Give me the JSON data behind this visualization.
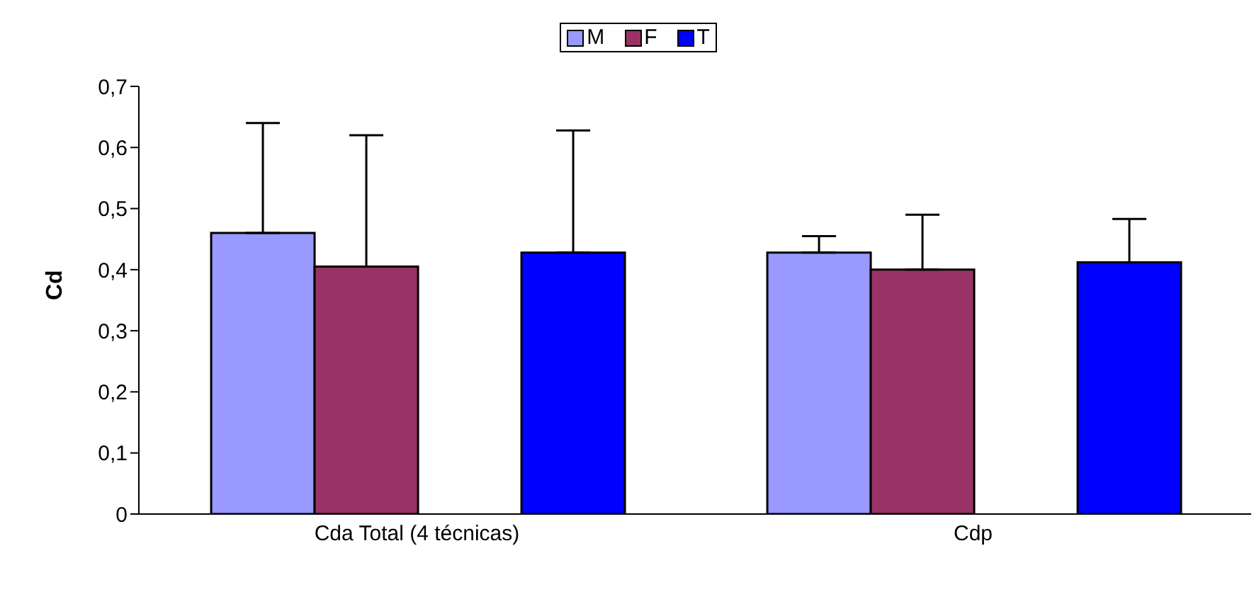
{
  "chart_data": {
    "type": "bar",
    "ylabel": "Cd",
    "categories": [
      "Cda Total (4 técnicas)",
      "Cdp"
    ],
    "series": [
      {
        "name": "M",
        "color": "#9999ff",
        "values": [
          0.46,
          0.428
        ],
        "errors": [
          [
            0.46,
            0.64
          ],
          [
            0.428,
            0.455
          ]
        ]
      },
      {
        "name": "F",
        "color": "#993366",
        "values": [
          0.405,
          0.4
        ],
        "errors": [
          [
            0.405,
            0.62
          ],
          [
            0.4,
            0.49
          ]
        ]
      },
      {
        "name": "T",
        "color": "#0000ff",
        "values": [
          0.428,
          0.412
        ],
        "errors": [
          [
            0.428,
            0.628
          ],
          [
            0.412,
            0.483
          ]
        ]
      }
    ],
    "ylim": [
      0,
      0.7
    ],
    "yticks": [
      {
        "value": 0,
        "label": "0"
      },
      {
        "value": 0.1,
        "label": "0,1"
      },
      {
        "value": 0.2,
        "label": "0,2"
      },
      {
        "value": 0.3,
        "label": "0,3"
      },
      {
        "value": 0.4,
        "label": "0,4"
      },
      {
        "value": 0.5,
        "label": "0,5"
      },
      {
        "value": 0.6,
        "label": "0,6"
      },
      {
        "value": 0.7,
        "label": "0,7"
      }
    ],
    "grid": false,
    "legend": "top"
  }
}
